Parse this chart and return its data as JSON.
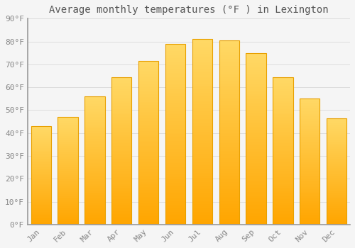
{
  "title": "Average monthly temperatures (°F ) in Lexington",
  "months": [
    "Jan",
    "Feb",
    "Mar",
    "Apr",
    "May",
    "Jun",
    "Jul",
    "Aug",
    "Sep",
    "Oct",
    "Nov",
    "Dec"
  ],
  "values": [
    43,
    47,
    56,
    64.5,
    71.5,
    79,
    81,
    80.5,
    75,
    64.5,
    55,
    46.5
  ],
  "bar_color_top": "#FFD700",
  "bar_color_bottom": "#FFA500",
  "bar_edge_color": "#E8A000",
  "background_color": "#F5F5F5",
  "plot_bg_color": "#F5F5F5",
  "grid_color": "#DDDDDD",
  "ylim": [
    0,
    90
  ],
  "yticks": [
    0,
    10,
    20,
    30,
    40,
    50,
    60,
    70,
    80,
    90
  ],
  "title_fontsize": 10,
  "tick_fontsize": 8,
  "tick_label_color": "#888888",
  "title_color": "#555555",
  "bar_width": 0.75
}
